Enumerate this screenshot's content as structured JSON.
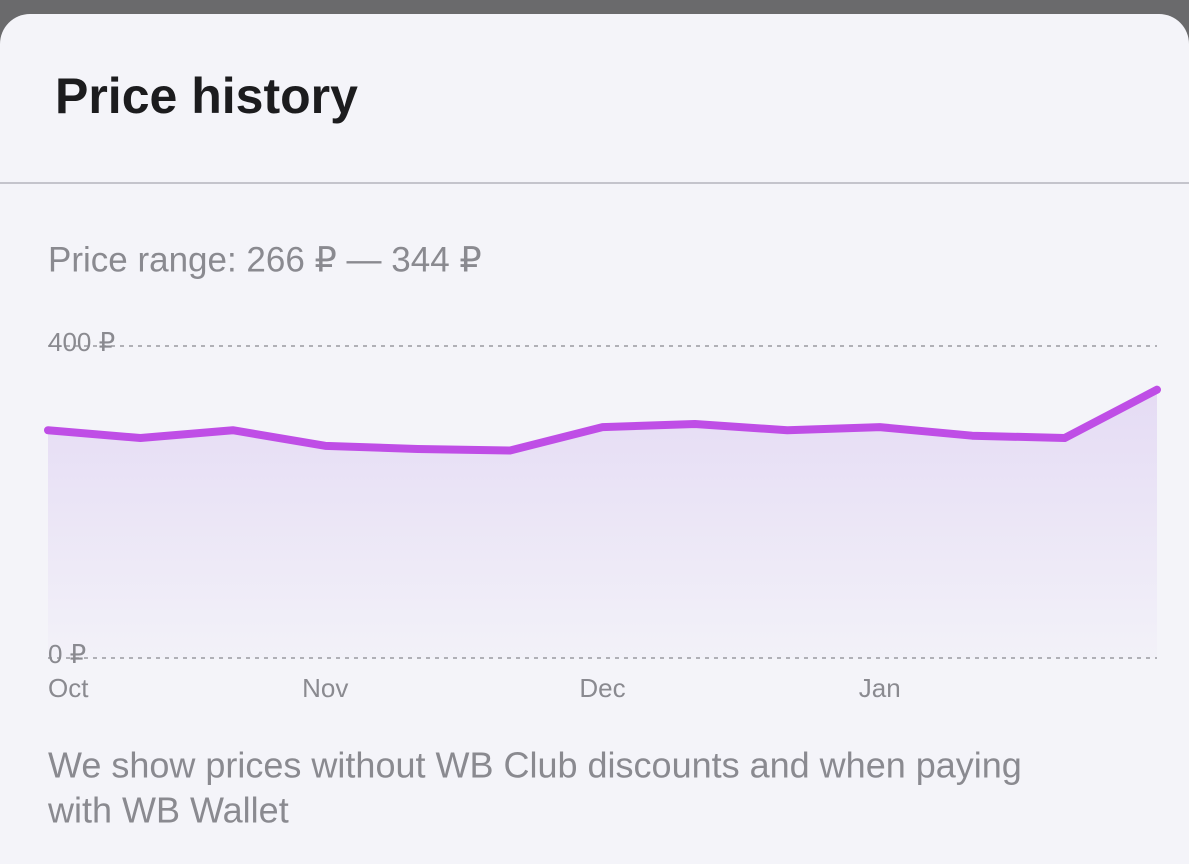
{
  "header": {
    "title": "Price history"
  },
  "price_range": "Price range: 266 ₽ — 344 ₽",
  "chart_data": {
    "type": "line",
    "categories": [
      "Oct",
      null,
      null,
      "Nov",
      null,
      null,
      "Dec",
      null,
      null,
      "Jan",
      null,
      null,
      null
    ],
    "values": [
      292,
      282,
      292,
      272,
      268,
      266,
      296,
      300,
      292,
      296,
      285,
      282,
      344
    ],
    "color": "#bf4ee6",
    "ylim": [
      0,
      400
    ],
    "yticks": [
      {
        "value": 0,
        "label": "0 ₽"
      },
      {
        "value": 400,
        "label": "400 ₽"
      }
    ],
    "grid": true
  },
  "footnote": [
    "We show prices without WB Club discounts and when paying",
    "with WB Wallet"
  ]
}
